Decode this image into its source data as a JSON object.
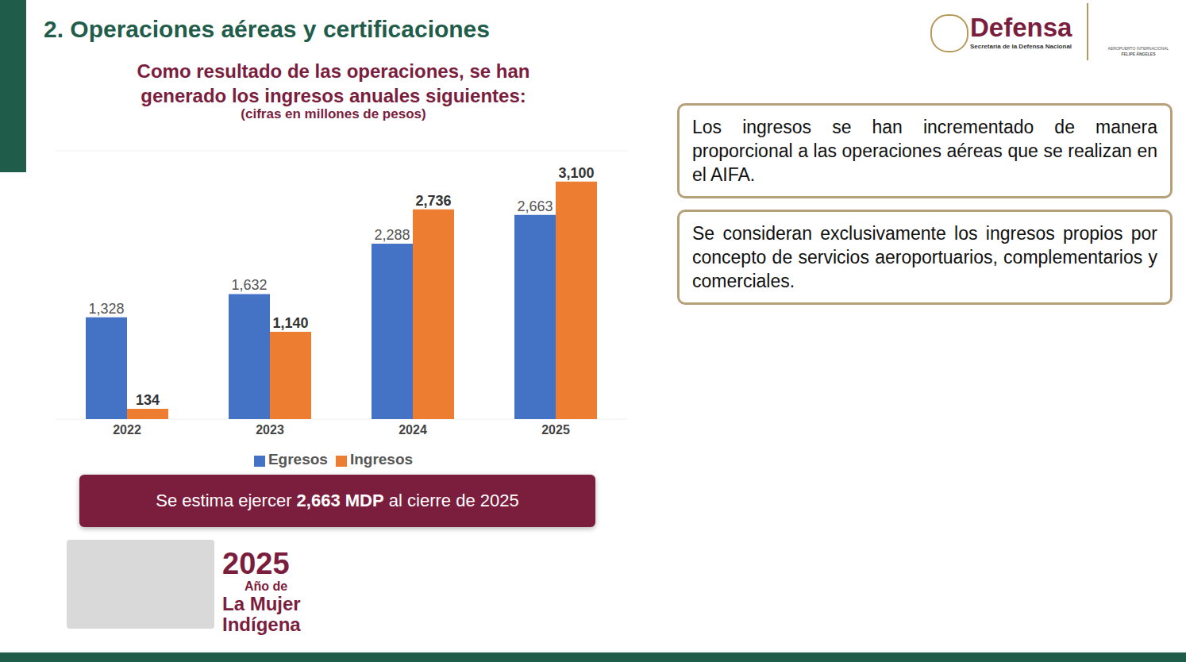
{
  "slide_title": "2. Operaciones aéreas y certificaciones",
  "logo": {
    "name": "Defensa",
    "subtitle": "Secretaría de la Defensa Nacional",
    "airport_lines": [
      "AEROPUERTO INTERNACIONAL",
      "FELIPE ÁNGELES"
    ]
  },
  "chart_data": {
    "type": "bar",
    "title": "Como resultado de las operaciones, se han generado los ingresos anuales siguientes:",
    "subtitle": "(cifras en millones de pesos)",
    "categories": [
      "2022",
      "2023",
      "2024",
      "2025"
    ],
    "series": [
      {
        "name": "Egresos",
        "color": "#4472c4",
        "values": [
          1328,
          1632,
          2288,
          2663
        ],
        "value_labels": [
          "1,328",
          "1,632",
          "2,288",
          "2,663"
        ]
      },
      {
        "name": "Ingresos",
        "color": "#ed7d31",
        "values": [
          134,
          1140,
          2736,
          3100
        ],
        "value_labels": [
          "134",
          "1,140",
          "2,736",
          "3,100"
        ]
      }
    ],
    "ylim": [
      0,
      3500
    ],
    "yticks": [
      0,
      500,
      1000,
      1500,
      2000,
      2500,
      3000,
      3500
    ],
    "grid": true,
    "tick_labels": "x",
    "data_labels": true,
    "legend": "bottom"
  },
  "banner": [
    "Se estima ejercer ",
    "2,663 MDP",
    " al cierre de 2025"
  ],
  "notes": [
    "Los ingresos se han incrementado de manera proporcional a las operaciones aéreas que se realizan en el AIFA.",
    "Se consideran exclusivamente los ingresos propios por concepto de servicios aeroportuarios, complementarios y comerciales."
  ],
  "badge": {
    "year": "2025",
    "lines": [
      "Año de",
      "La Mujer",
      "Indígena"
    ]
  }
}
